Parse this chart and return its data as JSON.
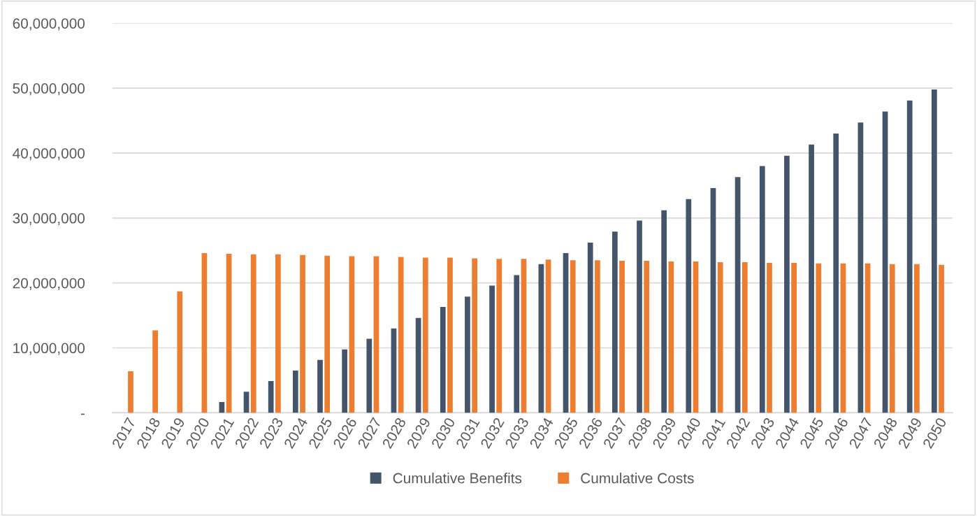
{
  "chart_data": {
    "type": "bar",
    "categories": [
      "2017",
      "2018",
      "2019",
      "2020",
      "2021",
      "2022",
      "2023",
      "2024",
      "2025",
      "2026",
      "2027",
      "2028",
      "2029",
      "2030",
      "2031",
      "2032",
      "2033",
      "2034",
      "2035",
      "2036",
      "2037",
      "2038",
      "2039",
      "2040",
      "2041",
      "2042",
      "2043",
      "2044",
      "2045",
      "2046",
      "2047",
      "2048",
      "2049",
      "2050"
    ],
    "series": [
      {
        "name": "Cumulative Benefits",
        "color": "#44546a",
        "values": [
          null,
          null,
          null,
          null,
          1650000,
          3250000,
          4900000,
          6500000,
          8150000,
          9750000,
          11400000,
          13000000,
          14600000,
          16300000,
          17900000,
          19600000,
          21200000,
          22900000,
          24600000,
          26200000,
          27900000,
          29600000,
          31200000,
          32900000,
          34600000,
          36300000,
          38000000,
          39600000,
          41300000,
          43000000,
          44700000,
          46400000,
          48100000,
          49800000
        ]
      },
      {
        "name": "Cumulative Costs",
        "color": "#ed7d31",
        "values": [
          6400000,
          12700000,
          18700000,
          24600000,
          24500000,
          24400000,
          24400000,
          24300000,
          24200000,
          24100000,
          24100000,
          24000000,
          23900000,
          23900000,
          23800000,
          23700000,
          23700000,
          23600000,
          23500000,
          23500000,
          23400000,
          23400000,
          23300000,
          23300000,
          23200000,
          23200000,
          23100000,
          23100000,
          23000000,
          23000000,
          23000000,
          22900000,
          22900000,
          22800000
        ]
      }
    ],
    "ylim": [
      0,
      60000000
    ],
    "yticks": [
      {
        "value": 0,
        "label": "-"
      },
      {
        "value": 10000000,
        "label": "10,000,000"
      },
      {
        "value": 20000000,
        "label": "20,000,000"
      },
      {
        "value": 30000000,
        "label": "30,000,000"
      },
      {
        "value": 40000000,
        "label": "40,000,000"
      },
      {
        "value": 50000000,
        "label": "50,000,000"
      },
      {
        "value": 60000000,
        "label": "60,000,000"
      }
    ],
    "grid": "y",
    "legend": "bottom"
  }
}
